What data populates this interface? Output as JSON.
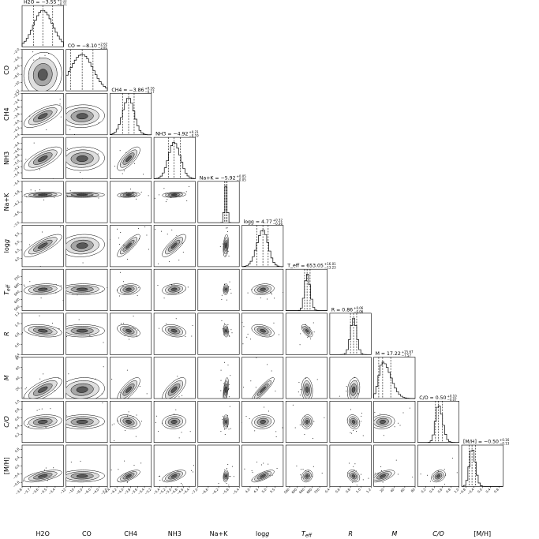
{
  "chart_data": {
    "type": "corner",
    "parameters": [
      {
        "label": "H2O",
        "median": -3.55,
        "plus": 0.12,
        "minus": 0.11,
        "range": [
          -3.8,
          -3.3
        ],
        "ticks": [
          -3.8,
          -3.7,
          -3.6,
          -3.5,
          -3.4
        ],
        "title_name": "H2O",
        "title_value": "−3.55",
        "title_plus": "+0.12",
        "title_minus": "−0.11"
      },
      {
        "label": "CO",
        "median": -8.1,
        "plus": 2.62,
        "minus": 2.81,
        "range": [
          -12,
          -2
        ],
        "ticks": [
          -12,
          -10,
          -8,
          -6,
          -4,
          -2
        ],
        "title_name": "CO",
        "title_value": "−8.10",
        "title_plus": "+2.62",
        "title_minus": "−2.81"
      },
      {
        "label": "CH4",
        "median": -3.86,
        "plus": 0.16,
        "minus": 0.17,
        "range": [
          -4.4,
          -3.2
        ],
        "ticks": [
          -4.4,
          -4.2,
          -4.0,
          -3.8,
          -3.6,
          -3.4,
          -3.2
        ],
        "title_name": "CH4",
        "title_value": "−3.86",
        "title_plus": "+0.16",
        "title_minus": "−0.17"
      },
      {
        "label": "NH3",
        "median": -4.92,
        "plus": 0.21,
        "minus": 0.19,
        "range": [
          -5.6,
          -4.2
        ],
        "ticks": [
          -5.4,
          -5.2,
          -5.0,
          -4.8,
          -4.6,
          -4.4
        ],
        "title_name": "NH3",
        "title_value": "−4.92",
        "title_plus": "+0.21",
        "title_minus": "−0.19"
      },
      {
        "label": "Na+K",
        "median": -5.92,
        "plus": 0.05,
        "minus": 0.05,
        "range": [
          -7.0,
          -5.4
        ],
        "ticks": [
          -7.0,
          -6.6,
          -6.2,
          -5.8,
          -5.4
        ],
        "title_name": "Na+K",
        "title_value": "−5.92",
        "title_plus": "+0.05",
        "title_minus": "−0.05"
      },
      {
        "label": "logg",
        "median": 4.77,
        "plus": 0.32,
        "minus": 0.36,
        "range": [
          3.5,
          6.0
        ],
        "ticks": [
          4.0,
          4.5,
          5.0,
          5.5
        ],
        "title_name": "logg",
        "title_value": "4.77",
        "title_plus": "+0.32",
        "title_minus": "−0.36"
      },
      {
        "label": "T_eff",
        "median": 653.05,
        "plus": 16.01,
        "minus": 13.23,
        "range": [
          540,
          760
        ],
        "ticks": [
          560,
          600,
          640,
          680,
          720
        ],
        "title_name": "T_eff",
        "title_value": "653.05",
        "title_plus": "+16.01",
        "title_minus": "−13.23"
      },
      {
        "label": "R",
        "median": 0.86,
        "plus": 0.06,
        "minus": 0.06,
        "range": [
          0.4,
          1.2
        ],
        "ticks": [
          0.4,
          0.6,
          0.8,
          1.0,
          1.2
        ],
        "title_name": "R",
        "title_value": "0.86",
        "title_plus": "+0.06",
        "title_minus": "−0.06"
      },
      {
        "label": "M",
        "median": 17.22,
        "plus": 15.67,
        "minus": 7.57,
        "range": [
          0,
          80
        ],
        "ticks": [
          20,
          40,
          60,
          80
        ],
        "title_name": "M",
        "title_value": "17.22",
        "title_plus": "+15.67",
        "title_minus": "−7.57"
      },
      {
        "label": "C/O",
        "median": 0.5,
        "plus": 0.1,
        "minus": 0.07,
        "range": [
          0.0,
          1.0
        ],
        "ticks": [
          0.2,
          0.4,
          0.6,
          0.8,
          1.0
        ],
        "title_name": "C/O",
        "title_value": "0.50",
        "title_plus": "+0.10",
        "title_minus": "−0.07"
      },
      {
        "label": "[M/H]",
        "median": -0.5,
        "plus": 0.16,
        "minus": 0.13,
        "range": [
          -1.0,
          1.0
        ],
        "ticks": [
          -0.8,
          -0.4,
          0.0,
          0.4,
          0.8
        ],
        "title_name": "[M/H]",
        "title_value": "−0.50",
        "title_plus": "+0.16",
        "title_minus": "−0.13"
      }
    ],
    "axis_labels": [
      "H2O",
      "CO",
      "CH4",
      "NH3",
      "Na+K",
      "logg",
      "T_eff",
      "R",
      "M",
      "C/O",
      "[M/H]"
    ],
    "correlations": [
      [
        0.0,
        0.0,
        0.0,
        0.0,
        0.0,
        0.0,
        0.0,
        0.0,
        0.0,
        0.0,
        0.0
      ],
      [
        0.05,
        0.0,
        0.0,
        0.0,
        0.0,
        0.0,
        0.0,
        0.0,
        0.0,
        0.0,
        0.0
      ],
      [
        0.7,
        0.05,
        0.0,
        0.0,
        0.0,
        0.0,
        0.0,
        0.0,
        0.0,
        0.0,
        0.0
      ],
      [
        0.7,
        0.05,
        0.75,
        0.0,
        0.0,
        0.0,
        0.0,
        0.0,
        0.0,
        0.0,
        0.0
      ],
      [
        0.2,
        0.0,
        0.2,
        0.2,
        0.0,
        0.0,
        0.0,
        0.0,
        0.0,
        0.0,
        0.0
      ],
      [
        0.8,
        0.1,
        0.85,
        0.8,
        0.3,
        0.0,
        0.0,
        0.0,
        0.0,
        0.0,
        0.0
      ],
      [
        0.2,
        0.05,
        0.2,
        0.2,
        0.1,
        0.2,
        0.0,
        0.0,
        0.0,
        0.0,
        0.0
      ],
      [
        -0.3,
        0.0,
        -0.4,
        -0.3,
        -0.2,
        -0.4,
        -0.6,
        0.0,
        0.0,
        0.0,
        0.0
      ],
      [
        0.7,
        0.1,
        0.75,
        0.7,
        0.5,
        0.9,
        -0.1,
        0.2,
        0.0,
        0.0,
        0.0
      ],
      [
        0.2,
        0.05,
        -0.3,
        0.1,
        0.05,
        0.1,
        0.1,
        -0.2,
        0.1,
        0.0,
        0.0
      ],
      [
        0.6,
        0.05,
        0.7,
        0.6,
        0.2,
        0.75,
        0.2,
        -0.3,
        0.6,
        0.3,
        0.0
      ]
    ]
  }
}
